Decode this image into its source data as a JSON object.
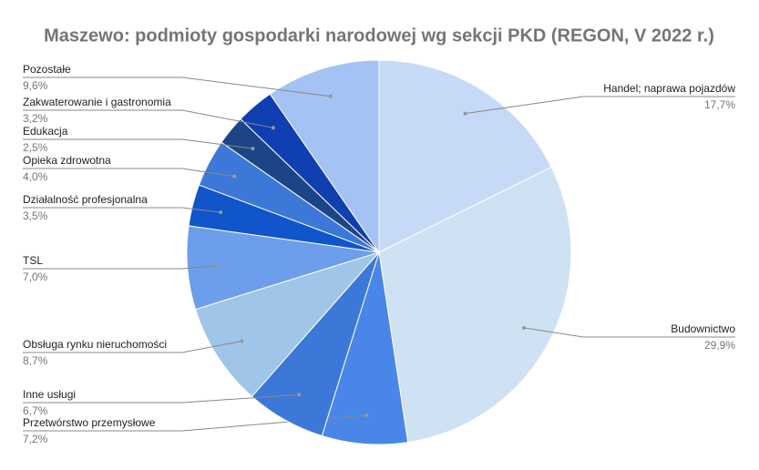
{
  "chart_data": {
    "type": "pie",
    "title": "Maszewo: podmioty gospodarki narodowej wg sekcji PKD (REGON, V 2022 r.)",
    "categories": [
      "Handel; naprawa pojazdów",
      "Budownictwo",
      "Przetwórstwo przemysłowe",
      "Inne usługi",
      "Obsługa rynku nieruchomości",
      "TSL",
      "Działalność profesjonalna",
      "Opieka zdrowotna",
      "Edukacja",
      "Zakwaterowanie i gastronomia",
      "Pozostałe"
    ],
    "values": [
      17.7,
      29.9,
      7.2,
      6.7,
      8.7,
      7.0,
      3.5,
      4.0,
      2.5,
      3.2,
      9.6
    ],
    "value_labels": [
      "17,7%",
      "29,9%",
      "7,2%",
      "6,7%",
      "8,7%",
      "7,0%",
      "3,5%",
      "4,0%",
      "2,5%",
      "3,2%",
      "9,6%"
    ],
    "colors": [
      "#c6d9f7",
      "#cfe2f3",
      "#4a86e8",
      "#3c78d8",
      "#9fc5e8",
      "#6d9eeb",
      "#1155cc",
      "#3c78d8",
      "#1c4587",
      "#0f3fb0",
      "#a4c2f4"
    ]
  }
}
